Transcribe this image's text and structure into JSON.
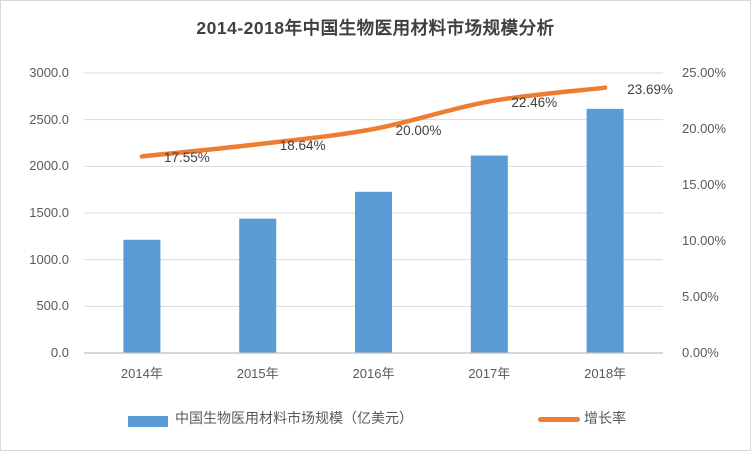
{
  "page": {
    "background": "#FFFFFF",
    "border_color": "#D9D9D9"
  },
  "chart_data": {
    "type": "combo-bar-line",
    "title": "2014-2018年中国生物医用材料市场规模分析",
    "categories": [
      "2014年",
      "2015年",
      "2016年",
      "2017年",
      "2018年"
    ],
    "series": [
      {
        "name": "中国生物医用材料市场规模（亿美元）",
        "chart_type": "bar",
        "y_axis": "left",
        "color": "#5B9BD5",
        "values": [
          1213,
          1439,
          1727,
          2115,
          2616
        ]
      },
      {
        "name": "增长率",
        "chart_type": "line",
        "smooth": true,
        "y_axis": "right",
        "color": "#ED7D31",
        "values": [
          17.55,
          18.64,
          20.0,
          22.46,
          23.69
        ],
        "data_labels": [
          "17.55%",
          "18.64%",
          "20.00%",
          "22.46%",
          "23.69%"
        ]
      }
    ],
    "left_axis": {
      "min": 0,
      "max": 3000,
      "step": 500,
      "tick_labels": [
        "3000.0",
        "2500.0",
        "2000.0",
        "1500.0",
        "1000.0",
        "500.0",
        "0.0"
      ]
    },
    "right_axis": {
      "min": 0,
      "max": 25,
      "step": 5,
      "tick_labels": [
        "25.00%",
        "20.00%",
        "15.00%",
        "10.00%",
        "5.00%",
        "0.00%"
      ]
    },
    "grid": true,
    "legend_position": "bottom",
    "text_colors": {
      "title": "#404040",
      "ticks": "#595959",
      "data_labels": "#404040",
      "legend": "#595959"
    },
    "line_colors": {
      "grid": "#D9D9D9",
      "axis": "#BFBFBF"
    }
  }
}
